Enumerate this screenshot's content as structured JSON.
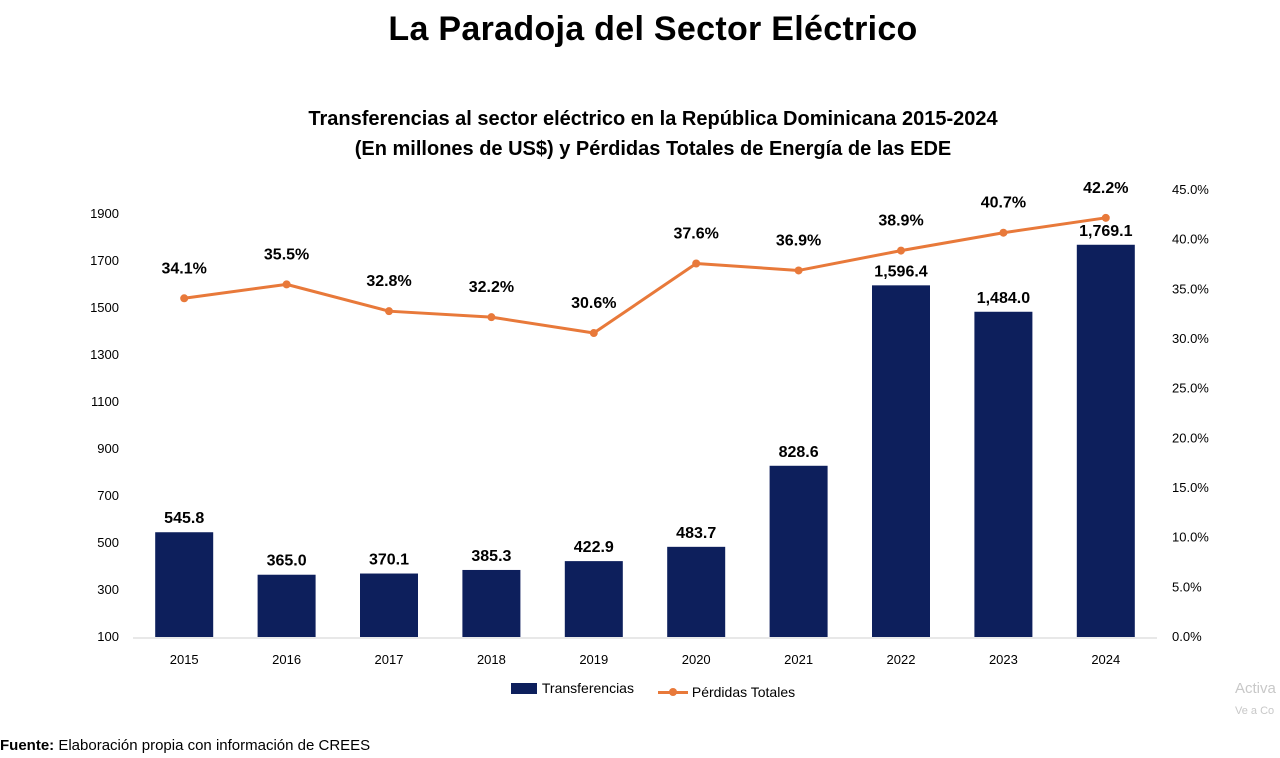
{
  "page": {
    "title": "La Paradoja del Sector Eléctrico",
    "source_label": "Fuente:",
    "source_text": " Elaboración propia con información de CREES",
    "watermark_line1": "Activa",
    "watermark_line2": "Ve a Co"
  },
  "chart_data": {
    "type": "bar",
    "title_line1": "Transferencias al sector eléctrico en la República Dominicana 2015-2024",
    "title_line2": "(En millones de US$) y Pérdidas Totales de Energía de las EDE",
    "categories": [
      "2015",
      "2016",
      "2017",
      "2018",
      "2019",
      "2020",
      "2021",
      "2022",
      "2023",
      "2024"
    ],
    "series": [
      {
        "name": "Transferencias",
        "type": "bar",
        "axis": "left",
        "color": "#0d1f5c",
        "values": [
          545.8,
          365.0,
          370.1,
          385.3,
          422.9,
          483.7,
          828.6,
          1596.4,
          1484.0,
          1769.1
        ],
        "labels": [
          "545.8",
          "365.0",
          "370.1",
          "385.3",
          "422.9",
          "483.7",
          "828.6",
          "1,596.4",
          "1,484.0",
          "1,769.1"
        ]
      },
      {
        "name": "Pérdidas Totales",
        "type": "line",
        "axis": "right",
        "color": "#e8793a",
        "values": [
          34.1,
          35.5,
          32.8,
          32.2,
          30.6,
          37.6,
          36.9,
          38.9,
          40.7,
          42.2
        ],
        "labels": [
          "34.1%",
          "35.5%",
          "32.8%",
          "32.2%",
          "30.6%",
          "37.6%",
          "36.9%",
          "38.9%",
          "40.7%",
          "42.2%"
        ]
      }
    ],
    "y_left": {
      "ylim": [
        100,
        1900
      ],
      "ticks": [
        "100",
        "300",
        "500",
        "700",
        "900",
        "1100",
        "1300",
        "1500",
        "1700",
        "1900"
      ]
    },
    "y_right": {
      "ylim": [
        0,
        45
      ],
      "ticks": [
        "0.0%",
        "5.0%",
        "10.0%",
        "15.0%",
        "20.0%",
        "25.0%",
        "30.0%",
        "35.0%",
        "40.0%",
        "45.0%"
      ]
    },
    "grid": false,
    "legend_position": "bottom"
  }
}
